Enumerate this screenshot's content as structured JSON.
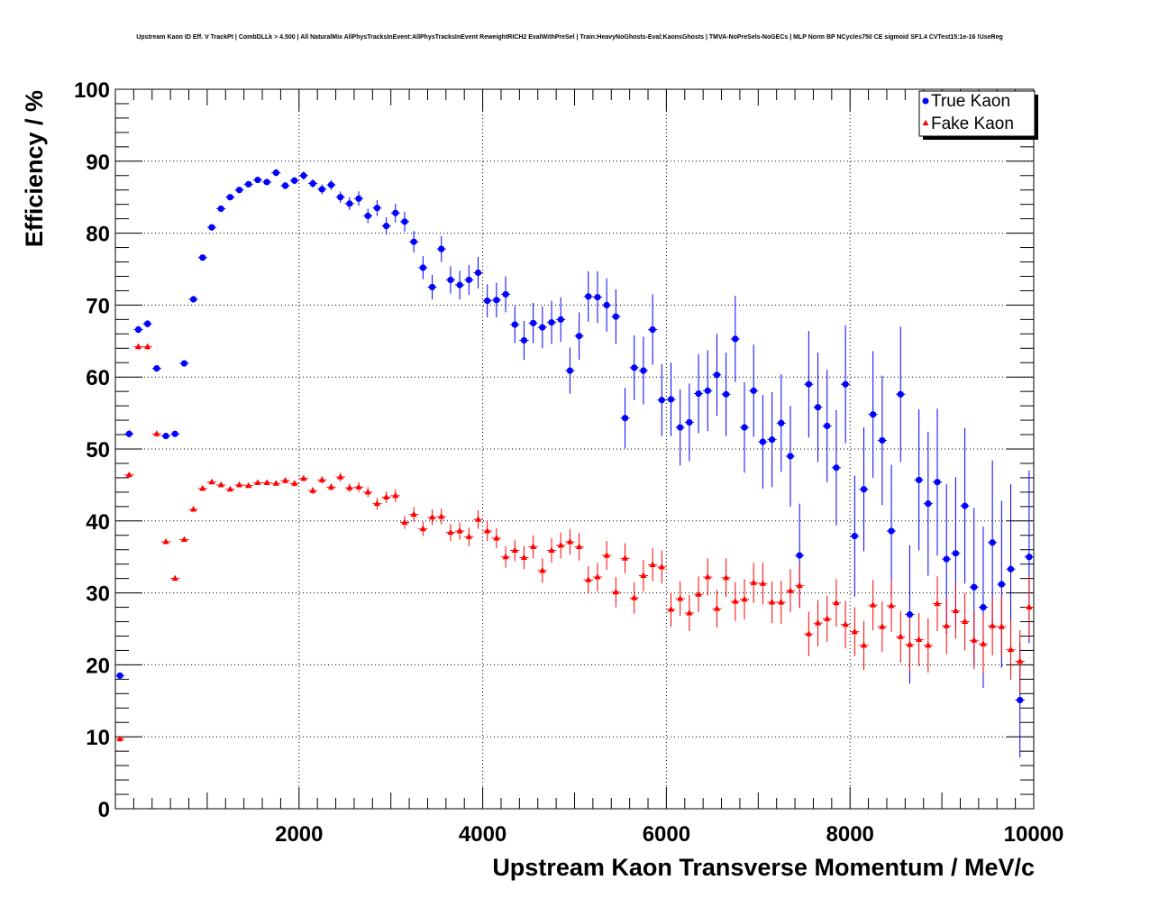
{
  "chart_data": {
    "type": "scatter",
    "title": "Upstream Kaon ID Eff. V TrackPt | CombDLLk > 4.500 | All NaturalMix AllPhysTracksInEvent:AllPhysTracksInEvent ReweightRICH2 EvalWithPreSel | Train:HeavyNoGhosts-Eval:KaonsGhosts | TMVA-NoPreSels-NoGECs | MLP Norm BP NCycles750 CE sigmoid SF1.4 CVTest15:1e-16 !UseReg",
    "xlabel": "Upstream Kaon Transverse Momentum / MeV/c",
    "ylabel": "Efficiency / %",
    "xlim": [
      0,
      10000
    ],
    "ylim": [
      0,
      100
    ],
    "xticks": [
      "2000",
      "4000",
      "6000",
      "8000",
      "10000"
    ],
    "yticks": [
      "0",
      "10",
      "20",
      "30",
      "40",
      "50",
      "60",
      "70",
      "80",
      "90",
      "100"
    ],
    "grid": true,
    "legend_position": "top-right",
    "series": [
      {
        "name": "True Kaon",
        "color": "#0000ff",
        "marker": "circle",
        "x": [
          50,
          150,
          250,
          350,
          450,
          550,
          650,
          750,
          850,
          950,
          1050,
          1150,
          1250,
          1350,
          1450,
          1550,
          1650,
          1750,
          1850,
          1950,
          2050,
          2150,
          2250,
          2350,
          2450,
          2550,
          2650,
          2750,
          2850,
          2950,
          3050,
          3150,
          3250,
          3350,
          3450,
          3550,
          3650,
          3750,
          3850,
          3950,
          4050,
          4150,
          4250,
          4350,
          4450,
          4550,
          4650,
          4750,
          4850,
          4950,
          5050,
          5150,
          5250,
          5350,
          5450,
          5550,
          5650,
          5750,
          5850,
          5950,
          6050,
          6150,
          6250,
          6350,
          6450,
          6550,
          6650,
          6750,
          6850,
          6950,
          7050,
          7150,
          7250,
          7350,
          7450,
          7550,
          7650,
          7750,
          7850,
          7950,
          8050,
          8150,
          8250,
          8350,
          8450,
          8550,
          8650,
          8750,
          8850,
          8950,
          9050,
          9150,
          9250,
          9350,
          9450,
          9550,
          9650,
          9750,
          9850,
          9950
        ],
        "y": [
          18.5,
          52.1,
          66.6,
          67.4,
          61.2,
          51.8,
          52.1,
          61.9,
          70.8,
          76.6,
          80.8,
          83.4,
          85.0,
          86.0,
          86.8,
          87.4,
          87.1,
          88.4,
          86.6,
          87.3,
          88.0,
          86.9,
          86.1,
          86.7,
          85.0,
          84.1,
          84.8,
          82.4,
          83.5,
          81.0,
          82.8,
          81.6,
          78.8,
          75.2,
          72.5,
          77.8,
          73.5,
          72.8,
          73.5,
          74.5,
          70.6,
          70.7,
          71.5,
          67.3,
          65.1,
          67.5,
          66.9,
          67.6,
          68.0,
          60.9,
          65.7,
          71.2,
          71.1,
          70.0,
          68.4,
          54.3,
          61.3,
          60.9,
          66.6,
          56.8,
          56.9,
          53.0,
          53.7,
          57.7,
          58.1,
          60.3,
          57.6,
          65.3,
          53.0,
          58.1,
          51.0,
          51.3,
          53.6,
          49.0,
          35.2,
          59.0,
          55.8,
          53.2,
          47.4,
          59.0,
          37.9,
          44.4,
          54.8,
          51.2,
          38.6,
          57.6,
          27.0,
          45.7,
          42.4,
          45.4,
          34.7,
          35.5,
          42.1,
          30.8,
          28.0,
          37.0,
          31.2,
          33.3,
          15.1,
          35.0
        ],
        "err": [
          0.4,
          0.5,
          0.5,
          0.5,
          0.4,
          0.4,
          0.4,
          0.4,
          0.4,
          0.4,
          0.4,
          0.4,
          0.4,
          0.4,
          0.4,
          0.4,
          0.4,
          0.5,
          0.5,
          0.5,
          0.6,
          0.6,
          0.7,
          0.7,
          0.8,
          0.9,
          1.0,
          1.0,
          1.1,
          1.2,
          1.3,
          1.4,
          1.5,
          1.6,
          1.7,
          1.8,
          1.9,
          2.0,
          2.1,
          2.2,
          2.3,
          2.4,
          2.5,
          2.6,
          2.7,
          2.8,
          2.9,
          3.0,
          3.1,
          3.2,
          3.3,
          3.5,
          3.6,
          3.7,
          3.8,
          4.2,
          4.5,
          4.7,
          4.9,
          5.0,
          5.1,
          5.3,
          5.4,
          5.5,
          5.6,
          5.7,
          5.8,
          6.0,
          6.3,
          6.4,
          6.5,
          6.6,
          6.8,
          7.0,
          7.2,
          7.4,
          7.6,
          7.8,
          8.0,
          8.2,
          8.4,
          8.6,
          8.8,
          9.0,
          9.2,
          9.4,
          9.6,
          9.8,
          10.0,
          10.2,
          10.4,
          10.6,
          10.8,
          11.0,
          11.2,
          11.4,
          11.6,
          11.8,
          8.0,
          12.0
        ]
      },
      {
        "name": "Fake Kaon",
        "color": "#ff0000",
        "marker": "triangle",
        "x": [
          50,
          150,
          250,
          350,
          450,
          550,
          650,
          750,
          850,
          950,
          1050,
          1150,
          1250,
          1350,
          1450,
          1550,
          1650,
          1750,
          1850,
          1950,
          2050,
          2150,
          2250,
          2350,
          2450,
          2550,
          2650,
          2750,
          2850,
          2950,
          3050,
          3150,
          3250,
          3350,
          3450,
          3550,
          3650,
          3750,
          3850,
          3950,
          4050,
          4150,
          4250,
          4350,
          4450,
          4550,
          4650,
          4750,
          4850,
          4950,
          5050,
          5150,
          5250,
          5350,
          5450,
          5550,
          5650,
          5750,
          5850,
          5950,
          6050,
          6150,
          6250,
          6350,
          6450,
          6550,
          6650,
          6750,
          6850,
          6950,
          7050,
          7150,
          7250,
          7350,
          7450,
          7550,
          7650,
          7750,
          7850,
          7950,
          8050,
          8150,
          8250,
          8350,
          8450,
          8550,
          8650,
          8750,
          8850,
          8950,
          9050,
          9150,
          9250,
          9350,
          9450,
          9550,
          9650,
          9750,
          9850,
          9950
        ],
        "y": [
          9.7,
          46.4,
          64.2,
          64.2,
          52.1,
          37.1,
          32.0,
          37.4,
          41.6,
          44.5,
          45.4,
          45.0,
          44.4,
          45.0,
          44.9,
          45.3,
          45.3,
          45.2,
          45.6,
          45.2,
          45.9,
          44.2,
          45.7,
          44.7,
          46.1,
          44.6,
          44.7,
          44.0,
          42.4,
          43.3,
          43.5,
          39.8,
          40.9,
          38.9,
          40.5,
          40.6,
          38.4,
          38.6,
          37.8,
          40.2,
          38.6,
          37.6,
          35.0,
          35.9,
          34.9,
          36.4,
          33.1,
          35.9,
          36.6,
          37.1,
          36.4,
          31.8,
          32.2,
          35.2,
          30.1,
          34.8,
          29.3,
          32.4,
          33.9,
          33.6,
          27.7,
          29.2,
          27.2,
          29.8,
          32.2,
          27.8,
          32.1,
          28.8,
          29.1,
          31.4,
          31.3,
          28.7,
          28.7,
          30.3,
          31.0,
          24.3,
          25.8,
          26.4,
          28.6,
          25.6,
          24.6,
          22.7,
          28.3,
          25.3,
          28.2,
          23.9,
          22.8,
          23.5,
          22.7,
          28.5,
          25.4,
          27.5,
          26.0,
          23.4,
          22.9,
          25.4,
          25.3,
          22.1,
          20.5,
          28.0
        ],
        "err": [
          0.3,
          0.3,
          0.4,
          0.4,
          0.4,
          0.3,
          0.3,
          0.3,
          0.3,
          0.3,
          0.3,
          0.3,
          0.3,
          0.3,
          0.3,
          0.3,
          0.3,
          0.3,
          0.4,
          0.4,
          0.4,
          0.5,
          0.5,
          0.5,
          0.6,
          0.6,
          0.7,
          0.7,
          0.8,
          0.8,
          0.9,
          0.9,
          1.0,
          1.0,
          1.1,
          1.1,
          1.2,
          1.2,
          1.3,
          1.3,
          1.4,
          1.4,
          1.5,
          1.5,
          1.6,
          1.6,
          1.7,
          1.7,
          1.8,
          1.8,
          1.9,
          1.9,
          2.0,
          2.0,
          2.1,
          2.1,
          2.2,
          2.2,
          2.3,
          2.3,
          2.4,
          2.4,
          2.5,
          2.5,
          2.6,
          2.6,
          2.7,
          2.7,
          2.8,
          2.8,
          2.9,
          2.9,
          3.0,
          3.0,
          3.1,
          3.1,
          3.2,
          3.2,
          3.3,
          3.3,
          3.4,
          3.4,
          3.5,
          3.5,
          3.6,
          3.6,
          3.7,
          3.7,
          3.8,
          3.8,
          3.9,
          3.9,
          4.0,
          4.0,
          4.1,
          4.1,
          4.2,
          4.2,
          4.3,
          4.3
        ]
      }
    ]
  }
}
